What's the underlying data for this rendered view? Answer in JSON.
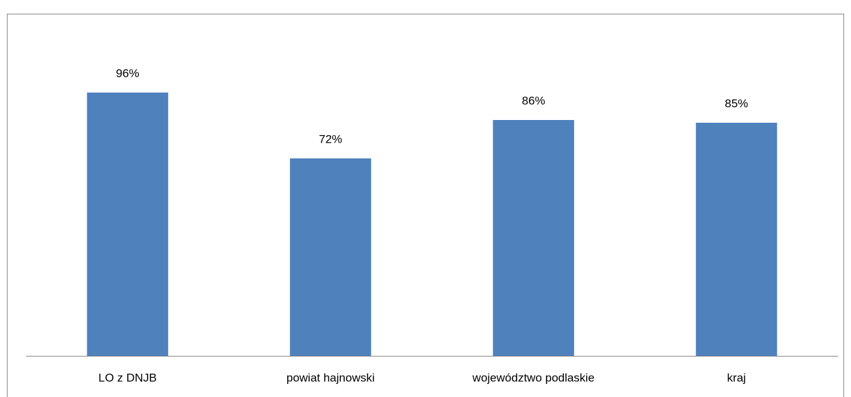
{
  "chart_data": {
    "type": "bar",
    "categories": [
      "LO z DNJB",
      "powiat hajnowski",
      "województwo podlaskie",
      "kraj"
    ],
    "values": [
      96,
      72,
      86,
      85
    ],
    "value_labels": [
      "96%",
      "72%",
      "86%",
      "85%"
    ],
    "color": "#4f81bd",
    "ylim": [
      0,
      120
    ]
  }
}
